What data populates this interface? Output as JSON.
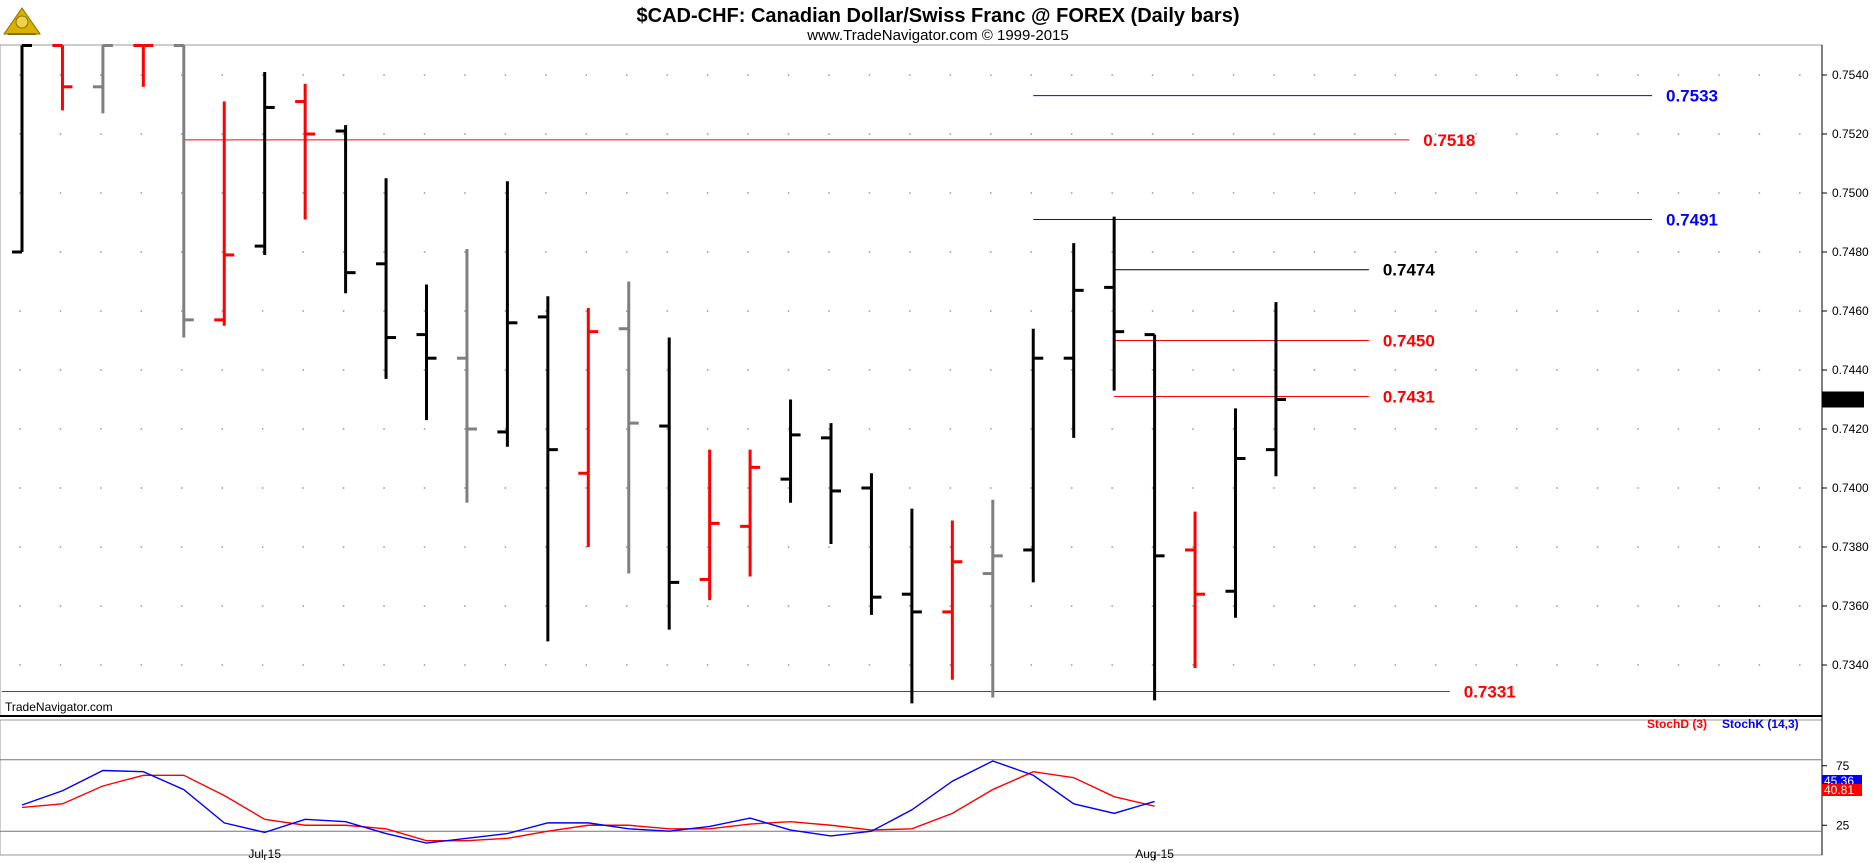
{
  "header": {
    "title": "$CAD-CHF:  Canadian Dollar/Swiss Franc @ FOREX  (Daily bars)",
    "subtitle": "www.TradeNavigator.com © 1999-2015"
  },
  "watermark": "TradeNavigator.com",
  "colors": {
    "up": "#000000",
    "down": "#ff0000",
    "neutral": "#808080",
    "stochK": "#0000ff",
    "stochD": "#ff0000",
    "accent": "#00aa00"
  },
  "chart_data": [
    {
      "type": "ohlc",
      "title": "$CAD-CHF:  Canadian Dollar/Swiss Franc @ FOREX  (Daily bars)",
      "ylim": [
        0.732,
        0.755
      ],
      "y_ticks": [
        "0.7340",
        "0.7360",
        "0.7380",
        "0.7400",
        "0.7420",
        "0.7440",
        "0.7460",
        "0.7480",
        "0.7500",
        "0.7520",
        "0.7540"
      ],
      "x_labels": [
        {
          "label": "Jul-15",
          "index": 6
        },
        {
          "label": "Aug-15",
          "index": 28
        }
      ],
      "last_price": "0.7430",
      "bars": [
        {
          "o": 0.748,
          "h": 0.755,
          "l": 0.748,
          "c": 0.755,
          "color": "up"
        },
        {
          "o": 0.755,
          "h": 0.755,
          "l": 0.7528,
          "c": 0.7536,
          "color": "down"
        },
        {
          "o": 0.7536,
          "h": 0.755,
          "l": 0.7527,
          "c": 0.755,
          "color": "neutral"
        },
        {
          "o": 0.755,
          "h": 0.755,
          "l": 0.7536,
          "c": 0.755,
          "color": "down"
        },
        {
          "o": 0.755,
          "h": 0.755,
          "l": 0.7451,
          "c": 0.7457,
          "color": "neutral"
        },
        {
          "o": 0.7457,
          "h": 0.7531,
          "l": 0.7455,
          "c": 0.7479,
          "color": "down"
        },
        {
          "o": 0.7482,
          "h": 0.7541,
          "l": 0.7479,
          "c": 0.7529,
          "color": "up"
        },
        {
          "o": 0.7531,
          "h": 0.7537,
          "l": 0.7491,
          "c": 0.752,
          "color": "down"
        },
        {
          "o": 0.7521,
          "h": 0.7523,
          "l": 0.7466,
          "c": 0.7473,
          "color": "up"
        },
        {
          "o": 0.7476,
          "h": 0.7505,
          "l": 0.7437,
          "c": 0.7451,
          "color": "up"
        },
        {
          "o": 0.7452,
          "h": 0.7469,
          "l": 0.7423,
          "c": 0.7444,
          "color": "up"
        },
        {
          "o": 0.7444,
          "h": 0.7481,
          "l": 0.7395,
          "c": 0.742,
          "color": "neutral"
        },
        {
          "o": 0.7419,
          "h": 0.7504,
          "l": 0.7414,
          "c": 0.7456,
          "color": "up"
        },
        {
          "o": 0.7458,
          "h": 0.7465,
          "l": 0.7348,
          "c": 0.7413,
          "color": "up"
        },
        {
          "o": 0.7405,
          "h": 0.7461,
          "l": 0.738,
          "c": 0.7453,
          "color": "down"
        },
        {
          "o": 0.7454,
          "h": 0.747,
          "l": 0.7371,
          "c": 0.7422,
          "color": "neutral"
        },
        {
          "o": 0.7421,
          "h": 0.7451,
          "l": 0.7352,
          "c": 0.7368,
          "color": "up"
        },
        {
          "o": 0.7369,
          "h": 0.7413,
          "l": 0.7362,
          "c": 0.7388,
          "color": "down"
        },
        {
          "o": 0.7387,
          "h": 0.7413,
          "l": 0.737,
          "c": 0.7407,
          "color": "down"
        },
        {
          "o": 0.7403,
          "h": 0.743,
          "l": 0.7395,
          "c": 0.7418,
          "color": "up"
        },
        {
          "o": 0.7417,
          "h": 0.7422,
          "l": 0.7381,
          "c": 0.7399,
          "color": "up"
        },
        {
          "o": 0.74,
          "h": 0.7405,
          "l": 0.7357,
          "c": 0.7363,
          "color": "up"
        },
        {
          "o": 0.7364,
          "h": 0.7393,
          "l": 0.7327,
          "c": 0.7358,
          "color": "up"
        },
        {
          "o": 0.7358,
          "h": 0.7389,
          "l": 0.7335,
          "c": 0.7375,
          "color": "down"
        },
        {
          "o": 0.7371,
          "h": 0.7396,
          "l": 0.7329,
          "c": 0.7377,
          "color": "neutral"
        },
        {
          "o": 0.7379,
          "h": 0.7454,
          "l": 0.7368,
          "c": 0.7444,
          "color": "up"
        },
        {
          "o": 0.7444,
          "h": 0.7483,
          "l": 0.7417,
          "c": 0.7467,
          "color": "up"
        },
        {
          "o": 0.7468,
          "h": 0.7492,
          "l": 0.7433,
          "c": 0.7453,
          "color": "up"
        },
        {
          "o": 0.7452,
          "h": 0.7452,
          "l": 0.7328,
          "c": 0.7377,
          "color": "up"
        },
        {
          "o": 0.7379,
          "h": 0.7392,
          "l": 0.7339,
          "c": 0.7364,
          "color": "down"
        },
        {
          "o": 0.7365,
          "h": 0.7427,
          "l": 0.7356,
          "c": 0.741,
          "color": "up"
        },
        {
          "o": 0.7413,
          "h": 0.7463,
          "l": 0.7404,
          "c": 0.743,
          "color": "up"
        }
      ],
      "levels": [
        {
          "value": 0.7533,
          "label": "0.7533",
          "color": "#0000ff",
          "from": 25,
          "to": 40
        },
        {
          "value": 0.7518,
          "label": "0.7518",
          "color": "#ff0000",
          "from": 4,
          "to": 34
        },
        {
          "value": 0.7491,
          "label": "0.7491",
          "color": "#0000ff",
          "from": 25,
          "to": 40
        },
        {
          "value": 0.7474,
          "label": "0.7474",
          "color": "#000000",
          "from": 27,
          "to": 33
        },
        {
          "value": 0.745,
          "label": "0.7450",
          "color": "#ff0000",
          "from": 27,
          "to": 33
        },
        {
          "value": 0.7431,
          "label": "0.7431",
          "color": "#ff0000",
          "from": 27,
          "to": 33
        },
        {
          "value": 0.7331,
          "label": "0.7331",
          "color": "#ff0000",
          "from": -0.5,
          "to": 35
        }
      ]
    },
    {
      "type": "line",
      "title": "",
      "ylim": [
        0,
        100
      ],
      "y_ticks": [
        "25",
        "75"
      ],
      "reference_lines": [
        20,
        80
      ],
      "series": [
        {
          "name": "StochD (3)",
          "color": "#ff0000",
          "values": [
            40,
            43,
            58,
            67,
            67,
            50,
            30,
            25,
            25,
            22,
            12,
            12,
            14,
            20,
            25,
            25,
            22,
            22,
            26,
            28,
            25,
            21,
            22,
            35,
            55,
            70,
            65,
            49,
            41
          ]
        },
        {
          "name": "StochK (14,3)",
          "color": "#0000ff",
          "values": [
            42,
            54,
            71,
            70,
            55,
            27,
            19,
            30,
            28,
            18,
            10,
            14,
            18,
            27,
            27,
            22,
            20,
            24,
            31,
            21,
            16,
            20,
            38,
            62,
            79,
            67,
            43,
            35,
            45
          ]
        }
      ],
      "last_values": [
        "45.36",
        "40.81"
      ]
    }
  ]
}
